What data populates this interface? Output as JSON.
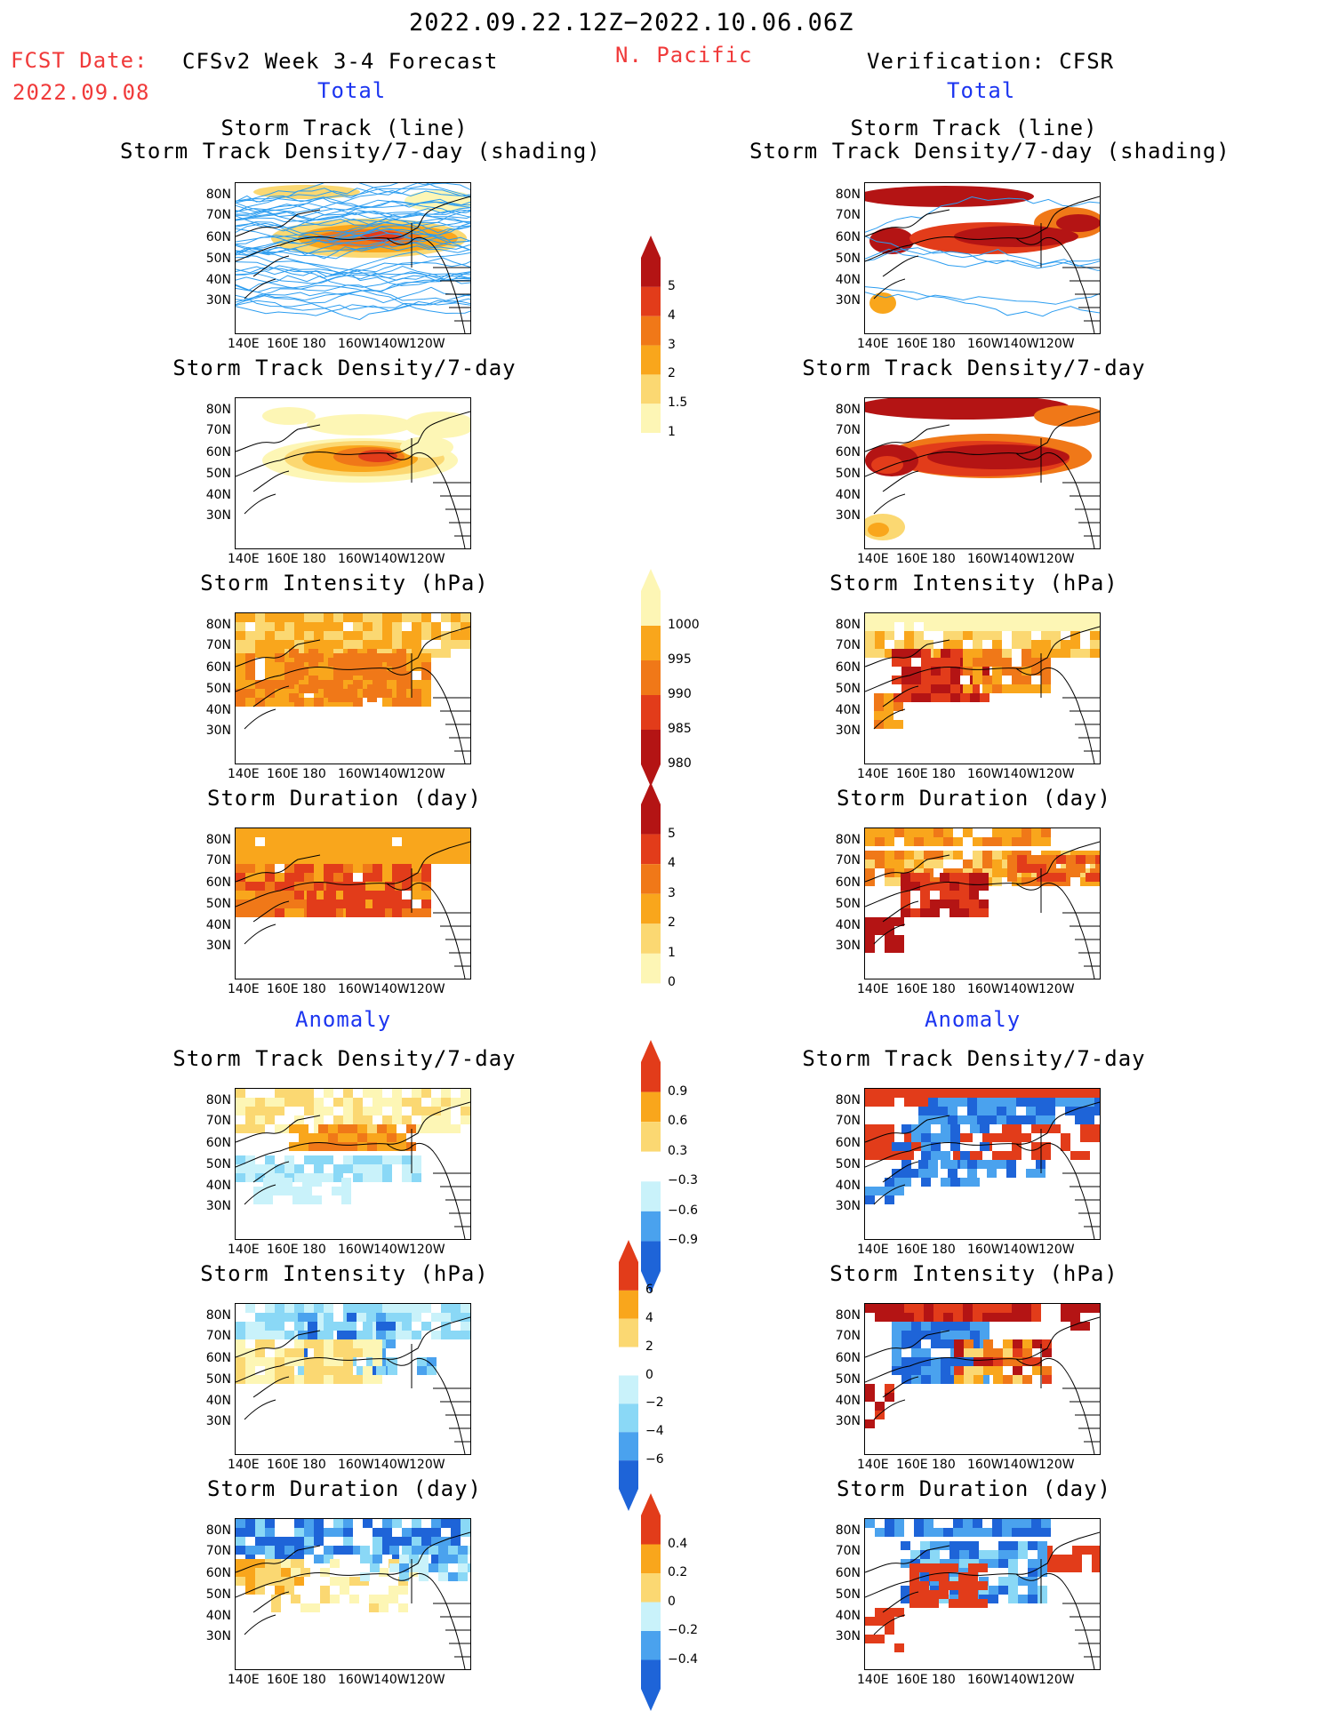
{
  "header": {
    "period": "2022.09.22.12Z−2022.10.06.06Z",
    "fcst_label": "FCST Date:",
    "fcst_date": "2022.09.08",
    "left_title": "CFSv2 Week 3-4 Forecast",
    "region": "N. Pacific",
    "right_title": "Verification: CFSR",
    "total_label": "Total",
    "anomaly_label": "Anomaly"
  },
  "axes": {
    "lat_labels": [
      "80N",
      "70N",
      "60N",
      "50N",
      "40N",
      "30N"
    ],
    "lon_labels": [
      "140E",
      "160E",
      "180",
      "160W",
      "140W",
      "120W"
    ]
  },
  "panels": {
    "track_title_1": "Storm Track (line)",
    "track_title_2": "Storm Track Density/7-day (shading)",
    "density": "Storm Track Density/7-day",
    "intensity": "Storm Intensity (hPa)",
    "duration": "Storm Duration (day)"
  },
  "colorbars": {
    "density_total": [
      "5",
      "4",
      "3",
      "2",
      "1.5",
      "1"
    ],
    "intensity_total": [
      "1000",
      "995",
      "990",
      "985",
      "980"
    ],
    "duration_total": [
      "5",
      "4",
      "3",
      "2",
      "1",
      "0"
    ],
    "density_anom": [
      "0.9",
      "0.6",
      "0.3",
      "−0.3",
      "−0.6",
      "−0.9"
    ],
    "intensity_anom": [
      "6",
      "4",
      "2",
      "0",
      "−2",
      "−4",
      "−6"
    ],
    "duration_anom": [
      "0.4",
      "0.2",
      "0",
      "−0.2",
      "−0.4"
    ]
  },
  "colors": {
    "warm": [
      "#fdf6b5",
      "#fbd872",
      "#f9a61c",
      "#f07818",
      "#e23c1a",
      "#b41414"
    ],
    "cool": [
      "#c9f2fa",
      "#8ad8f6",
      "#4aa2ee",
      "#1e64d8"
    ],
    "track_line": "#2c9df0"
  }
}
